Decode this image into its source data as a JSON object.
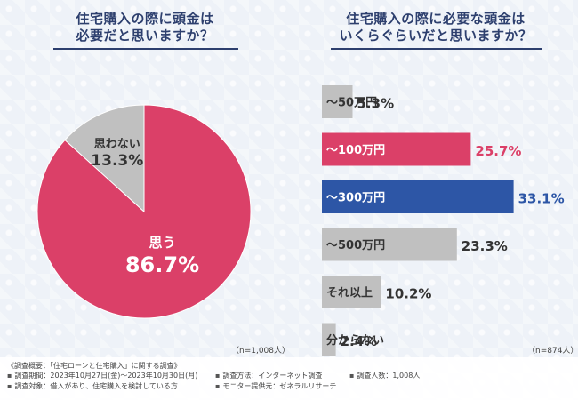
{
  "titles": {
    "pie": [
      "住宅購入の際に頭金は",
      "必要だと思いますか？"
    ],
    "bar": [
      "住宅購入の際に必要な頭金は",
      "いくらぐらいだと思いますか？"
    ]
  },
  "notes": {
    "pie_n": "（n=1,008人）",
    "bar_n": "（n=874人）"
  },
  "footer": {
    "overview": "《調査概要：「住宅ローンと住宅購入」に関する調査》",
    "period": "調査期間：2023年10月27日(金)～2023年10月30日(月)",
    "method": "調査方法：インターネット調査",
    "count": "調査人数：1,008人",
    "target": "調査対象：借入があり、住宅購入を検討している方",
    "provider": "モニター提供元：ゼネラルリサーチ"
  },
  "chart_data": [
    {
      "type": "pie",
      "title": "住宅購入の際に頭金は必要だと思いますか？",
      "slices": [
        {
          "label": "思う",
          "value": 86.7,
          "display": "86.7%",
          "color": "#db4068"
        },
        {
          "label": "思わない",
          "value": 13.3,
          "display": "13.3%",
          "color": "#c0c0c0"
        }
      ]
    },
    {
      "type": "bar",
      "title": "住宅購入の際に必要な頭金はいくらぐらいだと思いますか？",
      "categories": [
        "～50万円",
        "～100万円",
        "～300万円",
        "～500万円",
        "それ以上",
        "分からない"
      ],
      "values": [
        5.3,
        25.7,
        33.1,
        23.3,
        10.2,
        2.4
      ],
      "labels": [
        "5.3%",
        "25.7%",
        "33.1%",
        "23.3%",
        "10.2%",
        "2.4%"
      ],
      "colors": [
        "#c0c0c0",
        "#db4068",
        "#2d56a6",
        "#c0c0c0",
        "#c0c0c0",
        "#c0c0c0"
      ],
      "label_colors": [
        "#333333",
        "#ffffff",
        "#ffffff",
        "#333333",
        "#333333",
        "#333333"
      ],
      "value_colors": [
        "#333333",
        "#db4068",
        "#2d56a6",
        "#333333",
        "#333333",
        "#333333"
      ],
      "xlim": [
        0,
        35
      ]
    }
  ]
}
